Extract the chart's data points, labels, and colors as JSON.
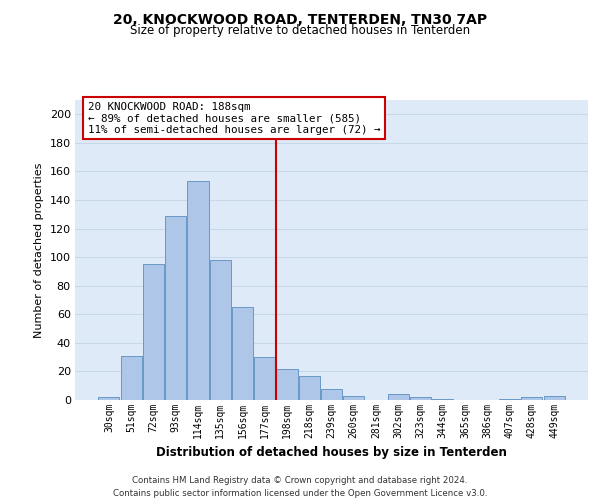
{
  "title1": "20, KNOCKWOOD ROAD, TENTERDEN, TN30 7AP",
  "title2": "Size of property relative to detached houses in Tenterden",
  "xlabel": "Distribution of detached houses by size in Tenterden",
  "ylabel": "Number of detached properties",
  "bar_labels": [
    "30sqm",
    "51sqm",
    "72sqm",
    "93sqm",
    "114sqm",
    "135sqm",
    "156sqm",
    "177sqm",
    "198sqm",
    "218sqm",
    "239sqm",
    "260sqm",
    "281sqm",
    "302sqm",
    "323sqm",
    "344sqm",
    "365sqm",
    "386sqm",
    "407sqm",
    "428sqm",
    "449sqm"
  ],
  "bar_heights": [
    2,
    31,
    95,
    129,
    153,
    98,
    65,
    30,
    22,
    17,
    8,
    3,
    0,
    4,
    2,
    1,
    0,
    0,
    1,
    2,
    3
  ],
  "bar_color": "#aec6e8",
  "bar_edge_color": "#5a8fc2",
  "grid_color": "#c8d8ea",
  "background_color": "#deeaf7",
  "vline_color": "#cc0000",
  "annotation_text": "20 KNOCKWOOD ROAD: 188sqm\n← 89% of detached houses are smaller (585)\n11% of semi-detached houses are larger (72) →",
  "annotation_box_color": "#ffffff",
  "annotation_box_edge": "#cc0000",
  "ylim": [
    0,
    210
  ],
  "yticks": [
    0,
    20,
    40,
    60,
    80,
    100,
    120,
    140,
    160,
    180,
    200
  ],
  "footer": "Contains HM Land Registry data © Crown copyright and database right 2024.\nContains public sector information licensed under the Open Government Licence v3.0."
}
